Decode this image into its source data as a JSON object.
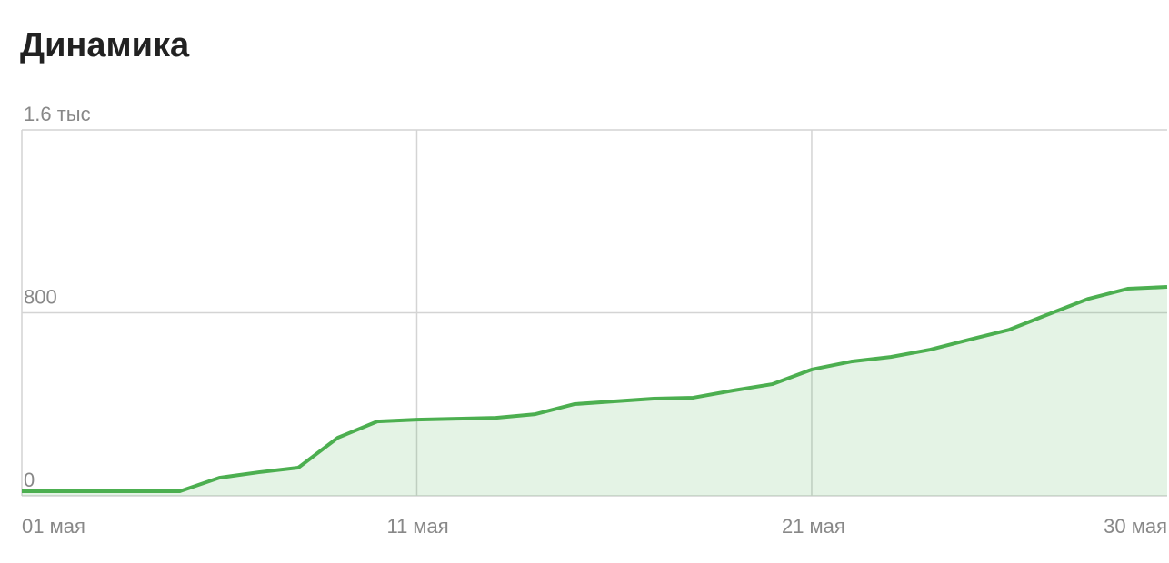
{
  "chart_data": {
    "type": "area",
    "title": "Динамика",
    "x": [
      1,
      2,
      3,
      4,
      5,
      6,
      7,
      8,
      9,
      10,
      11,
      12,
      13,
      14,
      15,
      16,
      17,
      18,
      19,
      20,
      21,
      22,
      23,
      24,
      25,
      26,
      27,
      28,
      29,
      30
    ],
    "series": [
      {
        "color": "#4caf50",
        "values": [
          20,
          20,
          20,
          20,
          20,
          79,
          103,
          123,
          254,
          325,
          333,
          337,
          341,
          357,
          401,
          413,
          425,
          429,
          460,
          488,
          552,
          587,
          607,
          639,
          683,
          726,
          794,
          861,
          905,
          913
        ]
      }
    ],
    "xlim": [
      1,
      30
    ],
    "xticks": [
      {
        "value": 1,
        "label": "01 мая"
      },
      {
        "value": 11,
        "label": "11 мая"
      },
      {
        "value": 21,
        "label": "21 мая"
      },
      {
        "value": 30,
        "label": "30 мая"
      }
    ],
    "ylim": [
      0,
      1600
    ],
    "yticks": [
      0,
      800,
      {
        "value": 1600,
        "label": "1.6 тыс"
      }
    ],
    "grid": true
  }
}
